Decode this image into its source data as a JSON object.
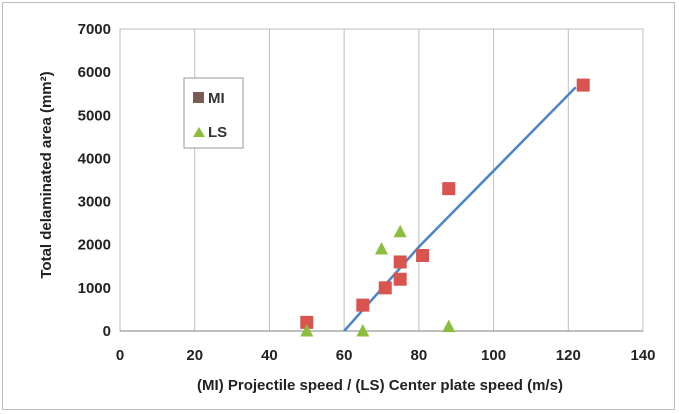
{
  "chart_data": {
    "type": "scatter",
    "title": "",
    "xlabel": "(MI) Projectile speed / (LS) Center plate speed (m/s)",
    "ylabel": "Total delaminated area (mm²)",
    "xlim": [
      0,
      140
    ],
    "ylim": [
      0,
      7000
    ],
    "x_ticks": [
      "0",
      "20",
      "40",
      "60",
      "80",
      "100",
      "120",
      "140"
    ],
    "y_ticks": [
      "0",
      "1000",
      "2000",
      "3000",
      "4000",
      "5000",
      "6000",
      "7000"
    ],
    "grid": "vertical",
    "legend_position": "upper-left",
    "series": [
      {
        "name": "MI",
        "marker": "square",
        "color": "#d9534f",
        "points": [
          [
            50,
            200
          ],
          [
            65,
            600
          ],
          [
            71,
            1000
          ],
          [
            75,
            1200
          ],
          [
            75,
            1600
          ],
          [
            81,
            1750
          ],
          [
            88,
            3300
          ],
          [
            124,
            5700
          ]
        ]
      },
      {
        "name": "LS",
        "marker": "triangle",
        "color": "#8cbd3f",
        "points": [
          [
            50,
            0
          ],
          [
            65,
            0
          ],
          [
            70,
            1900
          ],
          [
            75,
            2300
          ],
          [
            88,
            100
          ]
        ]
      }
    ],
    "trend_line": {
      "color": "#4a86c5",
      "points": [
        [
          60,
          0
        ],
        [
          80,
          1950
        ],
        [
          122,
          5650
        ]
      ]
    },
    "colors": {
      "gridline": "#bfbfbf",
      "axis": "#7f7f7f"
    }
  }
}
